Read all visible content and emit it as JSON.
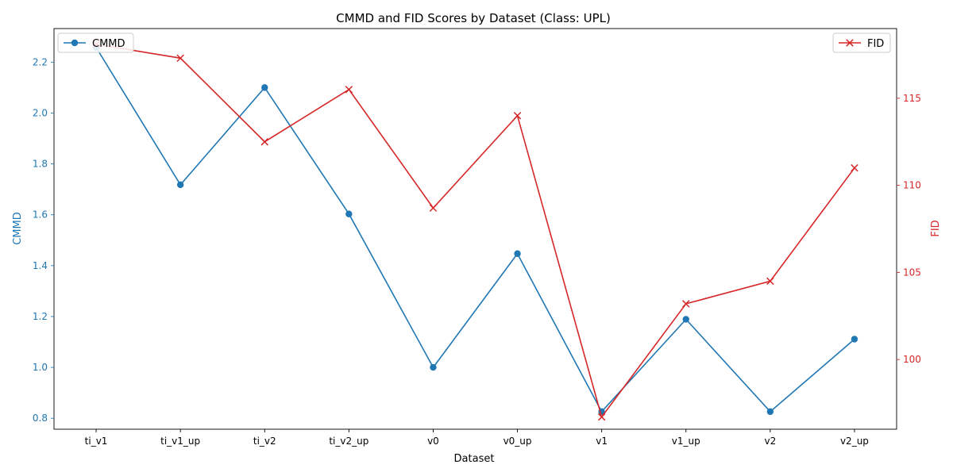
{
  "chart_data": {
    "type": "line",
    "title": "CMMD and FID Scores by Dataset (Class: UPL)",
    "xlabel": "Dataset",
    "ylabel_left": "CMMD",
    "ylabel_right": "FID",
    "categories": [
      "ti_v1",
      "ti_v1_up",
      "ti_v2",
      "ti_v2_up",
      "v0",
      "v0_up",
      "v1",
      "v1_up",
      "v2",
      "v2_up"
    ],
    "series": [
      {
        "name": "CMMD",
        "axis": "left",
        "marker": "circle",
        "color": "#1f77b4",
        "values": [
          2.258,
          1.718,
          2.1,
          1.603,
          1.0,
          1.447,
          0.826,
          1.189,
          0.826,
          1.111
        ]
      },
      {
        "name": "FID",
        "axis": "right",
        "marker": "x",
        "color": "#d62728",
        "values": [
          118.1,
          117.3,
          112.5,
          115.5,
          108.7,
          114.0,
          96.7,
          103.2,
          104.5,
          111.0
        ]
      }
    ],
    "ylim_left": [
      0.757,
      2.332
    ],
    "yticks_left": [
      "0.8",
      "1.0",
      "1.2",
      "1.4",
      "1.6",
      "1.8",
      "2.0",
      "2.2"
    ],
    "ylim_right": [
      96.0,
      119.0
    ],
    "yticks_right": [
      "100",
      "105",
      "110",
      "115"
    ],
    "legend_left_placement": "top-left",
    "legend_right_placement": "top-right",
    "grid": false
  }
}
